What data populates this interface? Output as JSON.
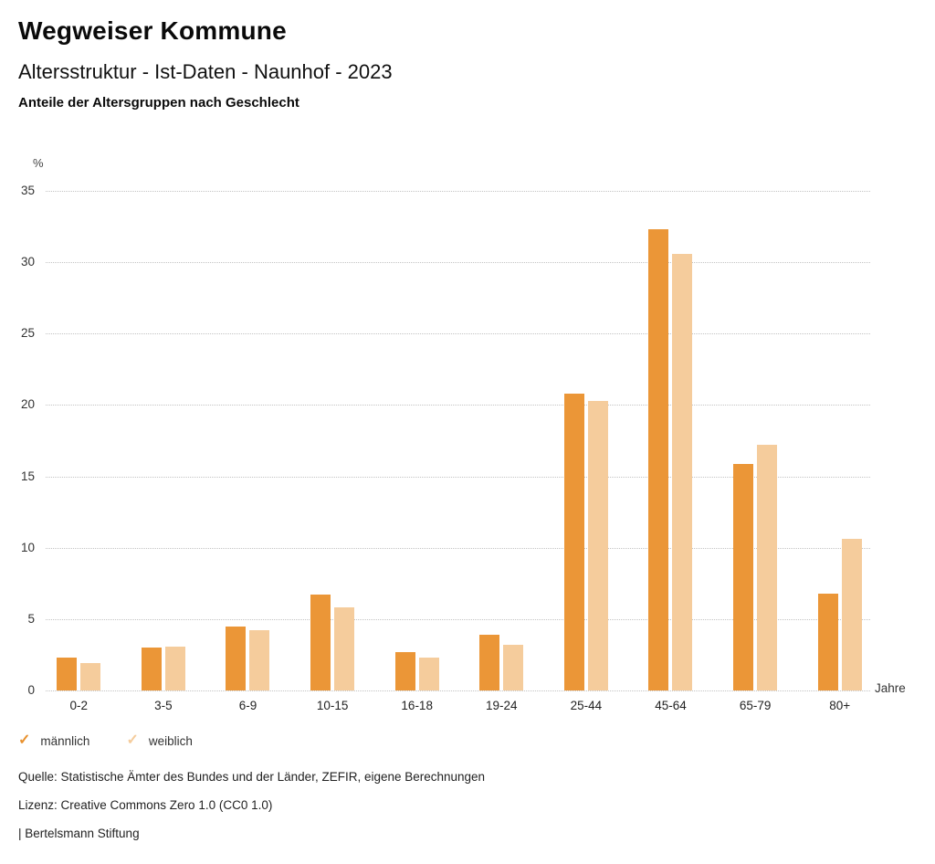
{
  "header": {
    "title": "Wegweiser Kommune",
    "subtitle": "Altersstruktur - Ist-Daten - Naunhof - 2023",
    "chart_heading": "Anteile der Altersgruppen nach Geschlecht"
  },
  "chart_data": {
    "type": "bar",
    "title": "Anteile der Altersgruppen nach Geschlecht",
    "categories": [
      "0-2",
      "3-5",
      "6-9",
      "10-15",
      "16-18",
      "19-24",
      "25-44",
      "45-64",
      "65-79",
      "80+"
    ],
    "series": [
      {
        "name": "männlich",
        "color": "#EB9637",
        "values": [
          2.3,
          3.0,
          4.5,
          6.7,
          2.7,
          3.9,
          20.8,
          32.3,
          15.9,
          6.8
        ]
      },
      {
        "name": "weiblich",
        "color": "#F5CC9C",
        "values": [
          1.9,
          3.1,
          4.2,
          5.8,
          2.3,
          3.2,
          20.3,
          30.6,
          17.2,
          10.6
        ]
      }
    ],
    "ylabel": "%",
    "xlabel": "Jahre",
    "ylim": [
      0,
      35
    ],
    "yticks": [
      0,
      5,
      10,
      15,
      20,
      25,
      30,
      35
    ],
    "grid": "horizontal-dotted",
    "legend_position": "bottom-left"
  },
  "legend": {
    "items": [
      {
        "label": "männlich",
        "symbol": "✓",
        "color": "#E8912E"
      },
      {
        "label": "weiblich",
        "symbol": "✓",
        "color": "#F5CC9C"
      }
    ]
  },
  "footer": {
    "source": "Quelle: Statistische Ämter des Bundes und der Länder, ZEFIR, eigene Berechnungen",
    "license": "Lizenz: Creative Commons Zero 1.0 (CC0 1.0)",
    "attribution": "| Bertelsmann Stiftung"
  }
}
